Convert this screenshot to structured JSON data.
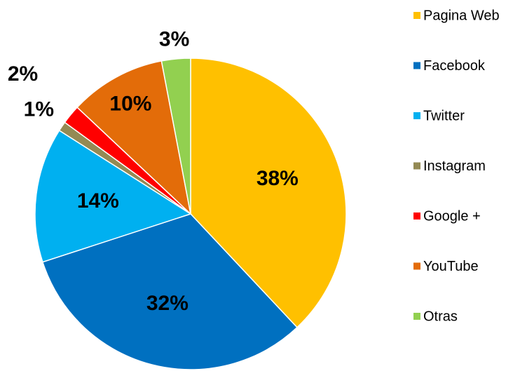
{
  "chart_data": {
    "type": "pie",
    "categories": [
      "Pagina Web",
      "Facebook",
      "Twitter",
      "Instagram",
      "Google +",
      "YouTube",
      "Otras"
    ],
    "values": [
      38,
      32,
      14,
      1,
      2,
      10,
      3
    ],
    "value_labels": [
      "38%",
      "32%",
      "14%",
      "1%",
      "2%",
      "10%",
      "3%"
    ],
    "colors": [
      "#FFC000",
      "#0070C0",
      "#00B0F0",
      "#948A54",
      "#FF0000",
      "#E36C09",
      "#92D050"
    ],
    "legend": "right"
  }
}
